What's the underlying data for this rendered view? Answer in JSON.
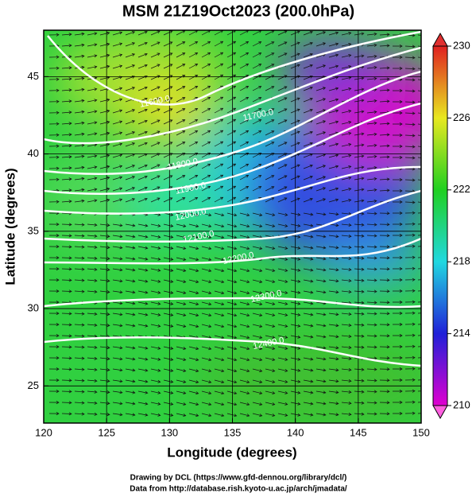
{
  "chart_data": {
    "type": "map",
    "title": "MSM 21Z19Oct2023 (200.0hPa)",
    "xlabel": "Longitude (degrees)",
    "ylabel": "Latitude  (degrees)",
    "xlim": [
      120,
      150
    ],
    "ylim": [
      22.6,
      48
    ],
    "xticks": [
      120,
      125,
      130,
      135,
      140,
      145,
      150
    ],
    "yticks": [
      25,
      30,
      35,
      40,
      45
    ],
    "grid": true,
    "colorbar": {
      "lim": [
        210,
        230
      ],
      "ticks": [
        210,
        214,
        218,
        222,
        226,
        230
      ]
    },
    "contours": [
      {
        "value": 11600,
        "label": "11600.0"
      },
      {
        "value": 11700,
        "label": "11700.0"
      },
      {
        "value": 11800,
        "label": "11800.0"
      },
      {
        "value": 11900,
        "label": "11900.0"
      },
      {
        "value": 12000,
        "label": "12000.0"
      },
      {
        "value": 12100,
        "label": "12100.0"
      },
      {
        "value": 12200,
        "label": "12200.0"
      },
      {
        "value": 12300,
        "label": "12300.0"
      },
      {
        "value": 12400,
        "label": "12400.0"
      }
    ],
    "credits": [
      "Drawing by DCL (https://www.gfd-dennou.org/library/dcl/)",
      "Data from http://database.rish.kyoto-u.ac.jp/arch/jmadata/"
    ]
  }
}
